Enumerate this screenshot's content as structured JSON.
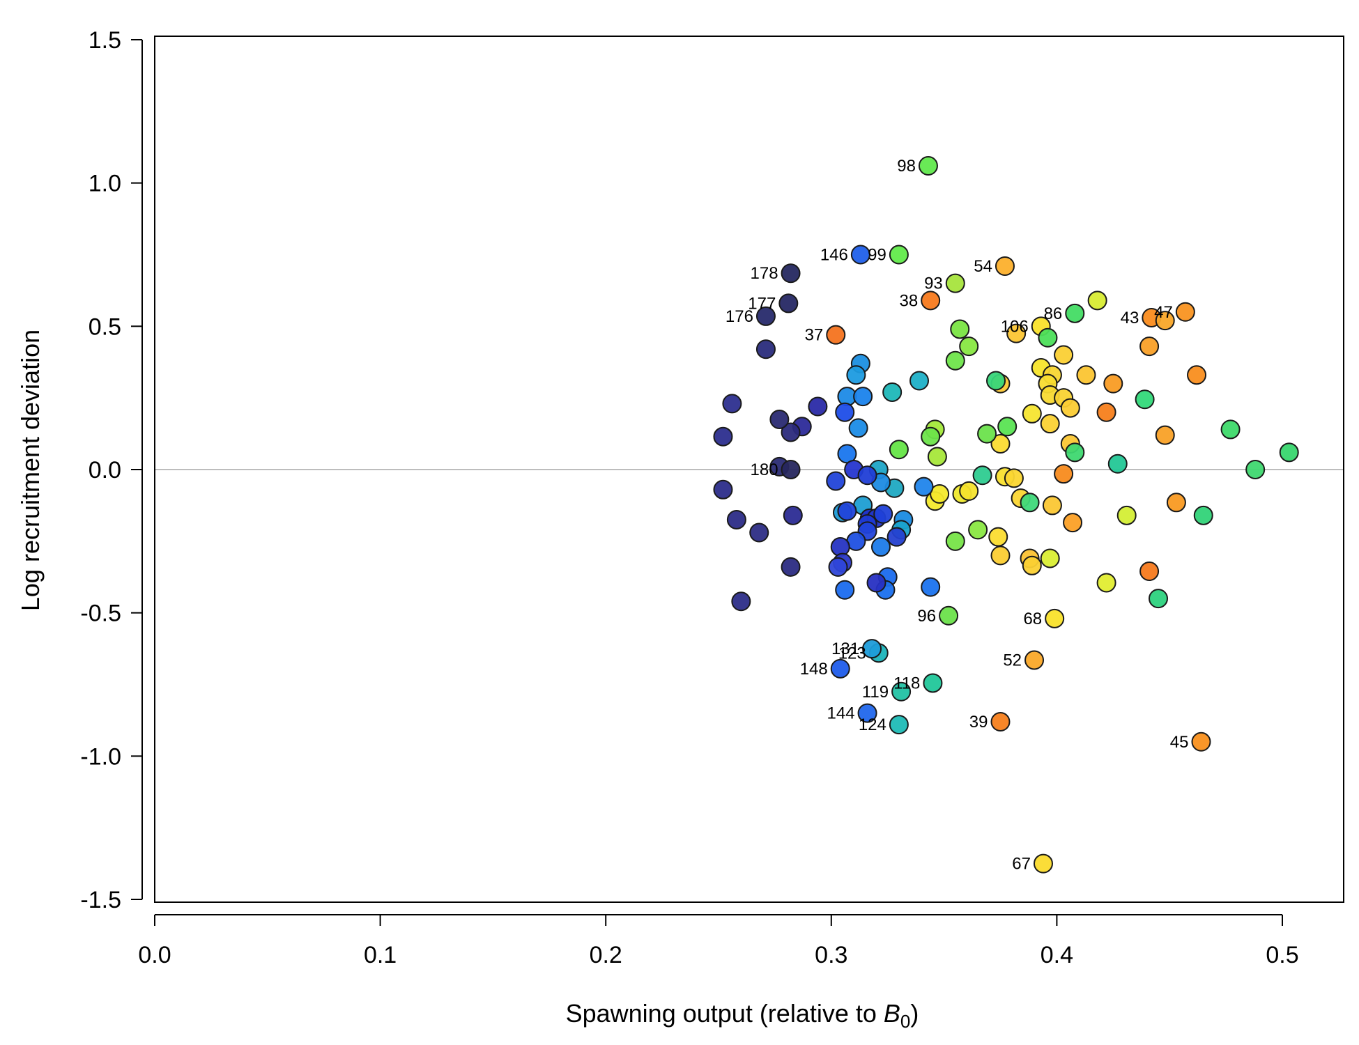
{
  "chart_data": {
    "type": "scatter",
    "xlabel": "Spawning output (relative to ",
    "xlabel_symbol": "B",
    "xlabel_subscript": "0",
    "xlabel_suffix": ")",
    "ylabel": "Log recruitment deviation",
    "xlim": [
      0,
      0.53
    ],
    "ylim": [
      -1.5,
      1.5
    ],
    "x_ticks": [
      "0.0",
      "0.1",
      "0.2",
      "0.3",
      "0.4",
      "0.5"
    ],
    "y_ticks": [
      "-1.5",
      "-1.0",
      "-0.5",
      "0.0",
      "0.5",
      "1.0",
      "1.5"
    ],
    "reference_line_y": 0,
    "colormap": "turbo-like (early years orange/red, later years dark blue)",
    "points": [
      {
        "x": 0.302,
        "y": 0.47,
        "color": "#f4731f",
        "label": "37"
      },
      {
        "x": 0.344,
        "y": 0.59,
        "color": "#f77a1e",
        "label": "38"
      },
      {
        "x": 0.375,
        "y": -0.88,
        "color": "#f7801c",
        "label": "39"
      },
      {
        "x": 0.442,
        "y": 0.53,
        "color": "#fa8c1e",
        "label": "43"
      },
      {
        "x": 0.464,
        "y": -0.95,
        "color": "#f9901e",
        "label": "45"
      },
      {
        "x": 0.457,
        "y": 0.55,
        "color": "#f99421",
        "label": "47"
      },
      {
        "x": 0.39,
        "y": -0.665,
        "color": "#fba929",
        "label": "52"
      },
      {
        "x": 0.377,
        "y": 0.71,
        "color": "#fcb02c",
        "label": "54"
      },
      {
        "x": 0.394,
        "y": -1.375,
        "color": "#fbdb2d",
        "label": "67"
      },
      {
        "x": 0.399,
        "y": -0.52,
        "color": "#f9e22b",
        "label": "68"
      },
      {
        "x": 0.448,
        "y": 0.52,
        "color": "#f9a629",
        "label": ""
      },
      {
        "x": 0.441,
        "y": 0.43,
        "color": "#f9a028",
        "label": ""
      },
      {
        "x": 0.462,
        "y": 0.33,
        "color": "#f98e1f",
        "label": ""
      },
      {
        "x": 0.425,
        "y": 0.3,
        "color": "#f99c24",
        "label": ""
      },
      {
        "x": 0.422,
        "y": 0.2,
        "color": "#f7801c",
        "label": ""
      },
      {
        "x": 0.448,
        "y": 0.12,
        "color": "#f9a127",
        "label": ""
      },
      {
        "x": 0.403,
        "y": -0.015,
        "color": "#f88b1e",
        "label": ""
      },
      {
        "x": 0.453,
        "y": -0.115,
        "color": "#f99a22",
        "label": ""
      },
      {
        "x": 0.407,
        "y": -0.185,
        "color": "#fba026",
        "label": ""
      },
      {
        "x": 0.441,
        "y": -0.355,
        "color": "#f77a1e",
        "label": ""
      },
      {
        "x": 0.413,
        "y": 0.33,
        "color": "#fbc531",
        "label": ""
      },
      {
        "x": 0.403,
        "y": 0.4,
        "color": "#fbd034",
        "label": ""
      },
      {
        "x": 0.382,
        "y": 0.475,
        "color": "#fcc634",
        "label": ""
      },
      {
        "x": 0.393,
        "y": 0.5,
        "color": "#f9e22b",
        "label": "106"
      },
      {
        "x": 0.393,
        "y": 0.355,
        "color": "#f7e42b",
        "label": ""
      },
      {
        "x": 0.398,
        "y": 0.33,
        "color": "#f9d633",
        "label": ""
      },
      {
        "x": 0.396,
        "y": 0.3,
        "color": "#f8dd30",
        "label": ""
      },
      {
        "x": 0.397,
        "y": 0.26,
        "color": "#f8d932",
        "label": ""
      },
      {
        "x": 0.403,
        "y": 0.25,
        "color": "#f9d333",
        "label": ""
      },
      {
        "x": 0.406,
        "y": 0.215,
        "color": "#fbcc34",
        "label": ""
      },
      {
        "x": 0.389,
        "y": 0.195,
        "color": "#f6e530",
        "label": ""
      },
      {
        "x": 0.397,
        "y": 0.16,
        "color": "#fbd234",
        "label": ""
      },
      {
        "x": 0.406,
        "y": 0.09,
        "color": "#fbc735",
        "label": ""
      },
      {
        "x": 0.375,
        "y": 0.3,
        "color": "#fcc835",
        "label": ""
      },
      {
        "x": 0.375,
        "y": 0.09,
        "color": "#fbdb31",
        "label": ""
      },
      {
        "x": 0.377,
        "y": -0.025,
        "color": "#f9e02f",
        "label": ""
      },
      {
        "x": 0.381,
        "y": -0.03,
        "color": "#fbd632",
        "label": ""
      },
      {
        "x": 0.384,
        "y": -0.1,
        "color": "#fbd633",
        "label": ""
      },
      {
        "x": 0.398,
        "y": -0.125,
        "color": "#fbc734",
        "label": ""
      },
      {
        "x": 0.346,
        "y": -0.11,
        "color": "#f3e92d",
        "label": ""
      },
      {
        "x": 0.348,
        "y": -0.085,
        "color": "#f3e92c",
        "label": ""
      },
      {
        "x": 0.358,
        "y": -0.085,
        "color": "#eee82e",
        "label": ""
      },
      {
        "x": 0.361,
        "y": -0.075,
        "color": "#f6e32d",
        "label": ""
      },
      {
        "x": 0.374,
        "y": -0.235,
        "color": "#fbdc30",
        "label": ""
      },
      {
        "x": 0.375,
        "y": -0.3,
        "color": "#fbce33",
        "label": ""
      },
      {
        "x": 0.388,
        "y": -0.31,
        "color": "#fbc233",
        "label": ""
      },
      {
        "x": 0.389,
        "y": -0.335,
        "color": "#fbd033",
        "label": ""
      },
      {
        "x": 0.397,
        "y": -0.31,
        "color": "#daee34",
        "label": ""
      },
      {
        "x": 0.422,
        "y": -0.395,
        "color": "#e2ed32",
        "label": ""
      },
      {
        "x": 0.431,
        "y": -0.16,
        "color": "#d4ee35",
        "label": ""
      },
      {
        "x": 0.418,
        "y": 0.59,
        "color": "#d8ec33",
        "label": ""
      },
      {
        "x": 0.343,
        "y": 1.06,
        "color": "#61e84d",
        "label": "98"
      },
      {
        "x": 0.33,
        "y": 0.75,
        "color": "#62ea4b",
        "label": "99"
      },
      {
        "x": 0.355,
        "y": 0.65,
        "color": "#a7e43d",
        "label": "93"
      },
      {
        "x": 0.408,
        "y": 0.545,
        "color": "#43dc64",
        "label": "86"
      },
      {
        "x": 0.357,
        "y": 0.49,
        "color": "#7ae443",
        "label": ""
      },
      {
        "x": 0.396,
        "y": 0.46,
        "color": "#4cdf5a",
        "label": ""
      },
      {
        "x": 0.361,
        "y": 0.43,
        "color": "#88e742",
        "label": ""
      },
      {
        "x": 0.355,
        "y": 0.38,
        "color": "#6fe54b",
        "label": ""
      },
      {
        "x": 0.373,
        "y": 0.31,
        "color": "#37d57a",
        "label": ""
      },
      {
        "x": 0.346,
        "y": 0.14,
        "color": "#a3e93a",
        "label": ""
      },
      {
        "x": 0.344,
        "y": 0.115,
        "color": "#6de44a",
        "label": ""
      },
      {
        "x": 0.369,
        "y": 0.125,
        "color": "#6be24c",
        "label": ""
      },
      {
        "x": 0.378,
        "y": 0.15,
        "color": "#5ae453",
        "label": ""
      },
      {
        "x": 0.33,
        "y": 0.07,
        "color": "#65e547",
        "label": ""
      },
      {
        "x": 0.347,
        "y": 0.045,
        "color": "#a6e73a",
        "label": ""
      },
      {
        "x": 0.367,
        "y": -0.02,
        "color": "#2ecc90",
        "label": ""
      },
      {
        "x": 0.388,
        "y": -0.115,
        "color": "#3fd87a",
        "label": ""
      },
      {
        "x": 0.365,
        "y": -0.21,
        "color": "#8ae742",
        "label": ""
      },
      {
        "x": 0.355,
        "y": -0.25,
        "color": "#77e448",
        "label": ""
      },
      {
        "x": 0.352,
        "y": -0.51,
        "color": "#6be24b",
        "label": "96"
      },
      {
        "x": 0.439,
        "y": 0.245,
        "color": "#33d97a",
        "label": ""
      },
      {
        "x": 0.408,
        "y": 0.06,
        "color": "#3ed870",
        "label": ""
      },
      {
        "x": 0.427,
        "y": 0.02,
        "color": "#23c796",
        "label": ""
      },
      {
        "x": 0.477,
        "y": 0.14,
        "color": "#3ed96a",
        "label": ""
      },
      {
        "x": 0.488,
        "y": 0.0,
        "color": "#3fd870",
        "label": ""
      },
      {
        "x": 0.503,
        "y": 0.06,
        "color": "#38d66e",
        "label": ""
      },
      {
        "x": 0.465,
        "y": -0.16,
        "color": "#31d378",
        "label": ""
      },
      {
        "x": 0.445,
        "y": -0.45,
        "color": "#2dd27e",
        "label": ""
      },
      {
        "x": 0.345,
        "y": -0.745,
        "color": "#21c79a",
        "label": "118"
      },
      {
        "x": 0.331,
        "y": -0.775,
        "color": "#22c2a4",
        "label": "119"
      },
      {
        "x": 0.33,
        "y": -0.89,
        "color": "#1fbcb6",
        "label": "124"
      },
      {
        "x": 0.321,
        "y": -0.64,
        "color": "#1ab4bb",
        "label": "123"
      },
      {
        "x": 0.318,
        "y": -0.625,
        "color": "#1d9cd9",
        "label": "131"
      },
      {
        "x": 0.327,
        "y": 0.27,
        "color": "#1db7b8",
        "label": ""
      },
      {
        "x": 0.339,
        "y": 0.31,
        "color": "#1eb0c7",
        "label": ""
      },
      {
        "x": 0.321,
        "y": 0.0,
        "color": "#1ea5c7",
        "label": ""
      },
      {
        "x": 0.328,
        "y": -0.065,
        "color": "#1fa9c2",
        "label": ""
      },
      {
        "x": 0.314,
        "y": -0.125,
        "color": "#1e9ed2",
        "label": ""
      },
      {
        "x": 0.332,
        "y": -0.175,
        "color": "#1a8be2",
        "label": ""
      },
      {
        "x": 0.331,
        "y": -0.21,
        "color": "#1aa4ce",
        "label": ""
      },
      {
        "x": 0.305,
        "y": -0.15,
        "color": "#1c9cd8",
        "label": ""
      },
      {
        "x": 0.313,
        "y": 0.37,
        "color": "#1b8fe2",
        "label": ""
      },
      {
        "x": 0.311,
        "y": 0.33,
        "color": "#1c9be0",
        "label": ""
      },
      {
        "x": 0.307,
        "y": 0.255,
        "color": "#1c8ae6",
        "label": ""
      },
      {
        "x": 0.314,
        "y": 0.255,
        "color": "#1a83ec",
        "label": ""
      },
      {
        "x": 0.312,
        "y": 0.145,
        "color": "#1b8ce6",
        "label": ""
      },
      {
        "x": 0.307,
        "y": 0.055,
        "color": "#1976ee",
        "label": ""
      },
      {
        "x": 0.322,
        "y": -0.045,
        "color": "#1c8be2",
        "label": ""
      },
      {
        "x": 0.341,
        "y": -0.06,
        "color": "#2085eb",
        "label": ""
      },
      {
        "x": 0.322,
        "y": -0.27,
        "color": "#1c7bea",
        "label": ""
      },
      {
        "x": 0.325,
        "y": -0.375,
        "color": "#1a6cee",
        "label": ""
      },
      {
        "x": 0.324,
        "y": -0.42,
        "color": "#1a70ee",
        "label": ""
      },
      {
        "x": 0.306,
        "y": -0.42,
        "color": "#1b6bef",
        "label": ""
      },
      {
        "x": 0.344,
        "y": -0.41,
        "color": "#1b73ee",
        "label": ""
      },
      {
        "x": 0.313,
        "y": 0.75,
        "color": "#2060ea",
        "label": "146"
      },
      {
        "x": 0.304,
        "y": -0.695,
        "color": "#1f5cea",
        "label": "148"
      },
      {
        "x": 0.316,
        "y": -0.85,
        "color": "#2167ec",
        "label": "144"
      },
      {
        "x": 0.306,
        "y": 0.2,
        "color": "#1e4de8",
        "label": ""
      },
      {
        "x": 0.302,
        "y": -0.04,
        "color": "#2244d9",
        "label": ""
      },
      {
        "x": 0.31,
        "y": 0.0,
        "color": "#2636cf",
        "label": ""
      },
      {
        "x": 0.316,
        "y": -0.02,
        "color": "#203ed6",
        "label": ""
      },
      {
        "x": 0.307,
        "y": -0.145,
        "color": "#2144d9",
        "label": ""
      },
      {
        "x": 0.317,
        "y": -0.17,
        "color": "#2030cb",
        "label": ""
      },
      {
        "x": 0.32,
        "y": -0.17,
        "color": "#2034c9",
        "label": ""
      },
      {
        "x": 0.316,
        "y": -0.19,
        "color": "#1e3ad3",
        "label": ""
      },
      {
        "x": 0.323,
        "y": -0.155,
        "color": "#1f40d8",
        "label": ""
      },
      {
        "x": 0.316,
        "y": -0.215,
        "color": "#2143da",
        "label": ""
      },
      {
        "x": 0.311,
        "y": -0.25,
        "color": "#1f50e2",
        "label": ""
      },
      {
        "x": 0.329,
        "y": -0.235,
        "color": "#2440d0",
        "label": ""
      },
      {
        "x": 0.304,
        "y": -0.27,
        "color": "#2634c3",
        "label": ""
      },
      {
        "x": 0.305,
        "y": -0.325,
        "color": "#2a38c8",
        "label": ""
      },
      {
        "x": 0.303,
        "y": -0.34,
        "color": "#2f46d8",
        "label": ""
      },
      {
        "x": 0.32,
        "y": -0.395,
        "color": "#2730c2",
        "label": ""
      },
      {
        "x": 0.294,
        "y": 0.22,
        "color": "#2a2aa6",
        "label": ""
      },
      {
        "x": 0.287,
        "y": 0.15,
        "color": "#2c2a99",
        "label": ""
      },
      {
        "x": 0.283,
        "y": -0.16,
        "color": "#2b2b93",
        "label": ""
      },
      {
        "x": 0.282,
        "y": -0.34,
        "color": "#2b2b82",
        "label": ""
      },
      {
        "x": 0.282,
        "y": 0.13,
        "color": "#2b2a7c",
        "label": ""
      },
      {
        "x": 0.277,
        "y": 0.175,
        "color": "#2a2a72",
        "label": ""
      },
      {
        "x": 0.277,
        "y": 0.01,
        "color": "#2a2b74",
        "label": ""
      },
      {
        "x": 0.282,
        "y": 0.0,
        "color": "#27275e",
        "label": "180"
      },
      {
        "x": 0.282,
        "y": 0.685,
        "color": "#252860",
        "label": "178"
      },
      {
        "x": 0.281,
        "y": 0.58,
        "color": "#262864",
        "label": "177"
      },
      {
        "x": 0.271,
        "y": 0.535,
        "color": "#272a6c",
        "label": "176"
      },
      {
        "x": 0.271,
        "y": 0.42,
        "color": "#2a2c7c",
        "label": ""
      },
      {
        "x": 0.256,
        "y": 0.23,
        "color": "#2d2f8f",
        "label": ""
      },
      {
        "x": 0.252,
        "y": 0.115,
        "color": "#2c2e8e",
        "label": ""
      },
      {
        "x": 0.252,
        "y": -0.07,
        "color": "#2c2d8a",
        "label": ""
      },
      {
        "x": 0.258,
        "y": -0.175,
        "color": "#2c2c87",
        "label": ""
      },
      {
        "x": 0.268,
        "y": -0.22,
        "color": "#2d2d85",
        "label": ""
      },
      {
        "x": 0.26,
        "y": -0.46,
        "color": "#2c2d88",
        "label": ""
      }
    ]
  }
}
